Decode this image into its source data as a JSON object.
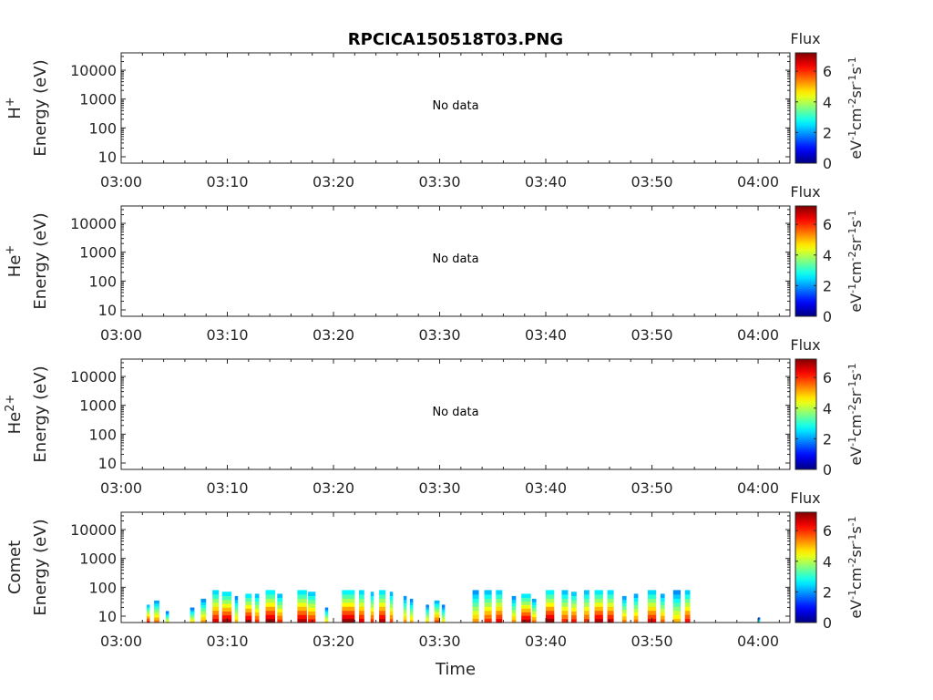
{
  "chart_data": {
    "type": "heatmap",
    "title": "RPCICA150518T03.PNG",
    "xlabel": "Time",
    "x_tick_labels": [
      "03:00",
      "03:10",
      "03:20",
      "03:30",
      "03:40",
      "03:50",
      "04:00"
    ],
    "x_range_minutes": [
      0,
      63
    ],
    "y_scale": "log",
    "y_tick_labels": [
      "10",
      "100",
      "1000",
      "10000"
    ],
    "y_tick_values": [
      10,
      100,
      1000,
      10000
    ],
    "ylim": [
      6,
      40000
    ],
    "colorbar": {
      "label": "Flux",
      "unit_main": "eV",
      "unit_parts": [
        "-1",
        "cm",
        "-2",
        "sr",
        "-1",
        "s",
        "-1"
      ],
      "range": [
        0,
        7.2
      ],
      "tick_labels": [
        "0",
        "2",
        "4",
        "6"
      ],
      "tick_values": [
        0,
        2,
        4,
        6
      ],
      "colormap": "jet"
    },
    "panels": [
      {
        "species": "H",
        "charge": "+",
        "ylabel": "Energy (eV)",
        "status": "No data"
      },
      {
        "species": "He",
        "charge": "+",
        "ylabel": "Energy (eV)",
        "status": "No data"
      },
      {
        "species": "He",
        "charge": "2+",
        "ylabel": "Energy (eV)",
        "status": "No data"
      },
      {
        "species": "Comet",
        "charge": "",
        "ylabel": "Energy (eV)",
        "status": "",
        "bursts": [
          {
            "t": 2.4,
            "w": 0.3,
            "top": 25,
            "peak": 6.2
          },
          {
            "t": 3.1,
            "w": 0.5,
            "top": 35,
            "peak": 5.5
          },
          {
            "t": 4.2,
            "w": 0.3,
            "top": 15,
            "peak": 4.6
          },
          {
            "t": 6.5,
            "w": 0.4,
            "top": 20,
            "peak": 4.8
          },
          {
            "t": 7.5,
            "w": 0.5,
            "top": 40,
            "peak": 5.2
          },
          {
            "t": 8.6,
            "w": 0.6,
            "top": 80,
            "peak": 6.5
          },
          {
            "t": 9.5,
            "w": 0.9,
            "top": 70,
            "peak": 6.8
          },
          {
            "t": 10.7,
            "w": 0.3,
            "top": 50,
            "peak": 5.0
          },
          {
            "t": 11.7,
            "w": 0.6,
            "top": 60,
            "peak": 6.9
          },
          {
            "t": 12.6,
            "w": 0.4,
            "top": 60,
            "peak": 6.0
          },
          {
            "t": 13.6,
            "w": 0.9,
            "top": 80,
            "peak": 7.0
          },
          {
            "t": 14.7,
            "w": 0.5,
            "top": 60,
            "peak": 6.0
          },
          {
            "t": 16.6,
            "w": 0.9,
            "top": 80,
            "peak": 6.8
          },
          {
            "t": 17.6,
            "w": 0.7,
            "top": 70,
            "peak": 6.2
          },
          {
            "t": 19.2,
            "w": 0.3,
            "top": 20,
            "peak": 4.8
          },
          {
            "t": 20.8,
            "w": 1.2,
            "top": 80,
            "peak": 7.0
          },
          {
            "t": 22.4,
            "w": 0.5,
            "top": 80,
            "peak": 6.5
          },
          {
            "t": 23.5,
            "w": 0.3,
            "top": 70,
            "peak": 6.0
          },
          {
            "t": 24.3,
            "w": 0.6,
            "top": 80,
            "peak": 6.8
          },
          {
            "t": 25.3,
            "w": 0.3,
            "top": 70,
            "peak": 5.8
          },
          {
            "t": 26.6,
            "w": 0.3,
            "top": 50,
            "peak": 5.2
          },
          {
            "t": 27.2,
            "w": 0.3,
            "top": 40,
            "peak": 5.0
          },
          {
            "t": 28.7,
            "w": 0.3,
            "top": 25,
            "peak": 4.8
          },
          {
            "t": 29.5,
            "w": 0.5,
            "top": 35,
            "peak": 5.8
          },
          {
            "t": 30.2,
            "w": 0.3,
            "top": 25,
            "peak": 4.6
          },
          {
            "t": 33.1,
            "w": 0.6,
            "top": 80,
            "peak": 5.2
          },
          {
            "t": 34.2,
            "w": 0.7,
            "top": 80,
            "peak": 6.0
          },
          {
            "t": 35.3,
            "w": 0.6,
            "top": 80,
            "peak": 6.4
          },
          {
            "t": 36.8,
            "w": 0.4,
            "top": 50,
            "peak": 5.2
          },
          {
            "t": 37.7,
            "w": 0.9,
            "top": 60,
            "peak": 6.8
          },
          {
            "t": 38.7,
            "w": 0.4,
            "top": 40,
            "peak": 5.5
          },
          {
            "t": 40.0,
            "w": 0.8,
            "top": 80,
            "peak": 7.0
          },
          {
            "t": 41.5,
            "w": 0.6,
            "top": 80,
            "peak": 6.0
          },
          {
            "t": 42.4,
            "w": 0.5,
            "top": 70,
            "peak": 6.2
          },
          {
            "t": 43.6,
            "w": 0.5,
            "top": 80,
            "peak": 6.0
          },
          {
            "t": 44.6,
            "w": 0.8,
            "top": 80,
            "peak": 6.8
          },
          {
            "t": 45.8,
            "w": 0.6,
            "top": 80,
            "peak": 6.6
          },
          {
            "t": 47.2,
            "w": 0.4,
            "top": 50,
            "peak": 5.4
          },
          {
            "t": 48.3,
            "w": 0.4,
            "top": 60,
            "peak": 5.5
          },
          {
            "t": 49.6,
            "w": 0.8,
            "top": 80,
            "peak": 6.4
          },
          {
            "t": 50.8,
            "w": 0.4,
            "top": 60,
            "peak": 5.6
          },
          {
            "t": 52.0,
            "w": 0.7,
            "top": 80,
            "peak": 5.0
          },
          {
            "t": 53.1,
            "w": 0.5,
            "top": 80,
            "peak": 6.2
          },
          {
            "t": 60.0,
            "w": 0.2,
            "top": 9,
            "peak": 3.6
          }
        ]
      }
    ]
  }
}
